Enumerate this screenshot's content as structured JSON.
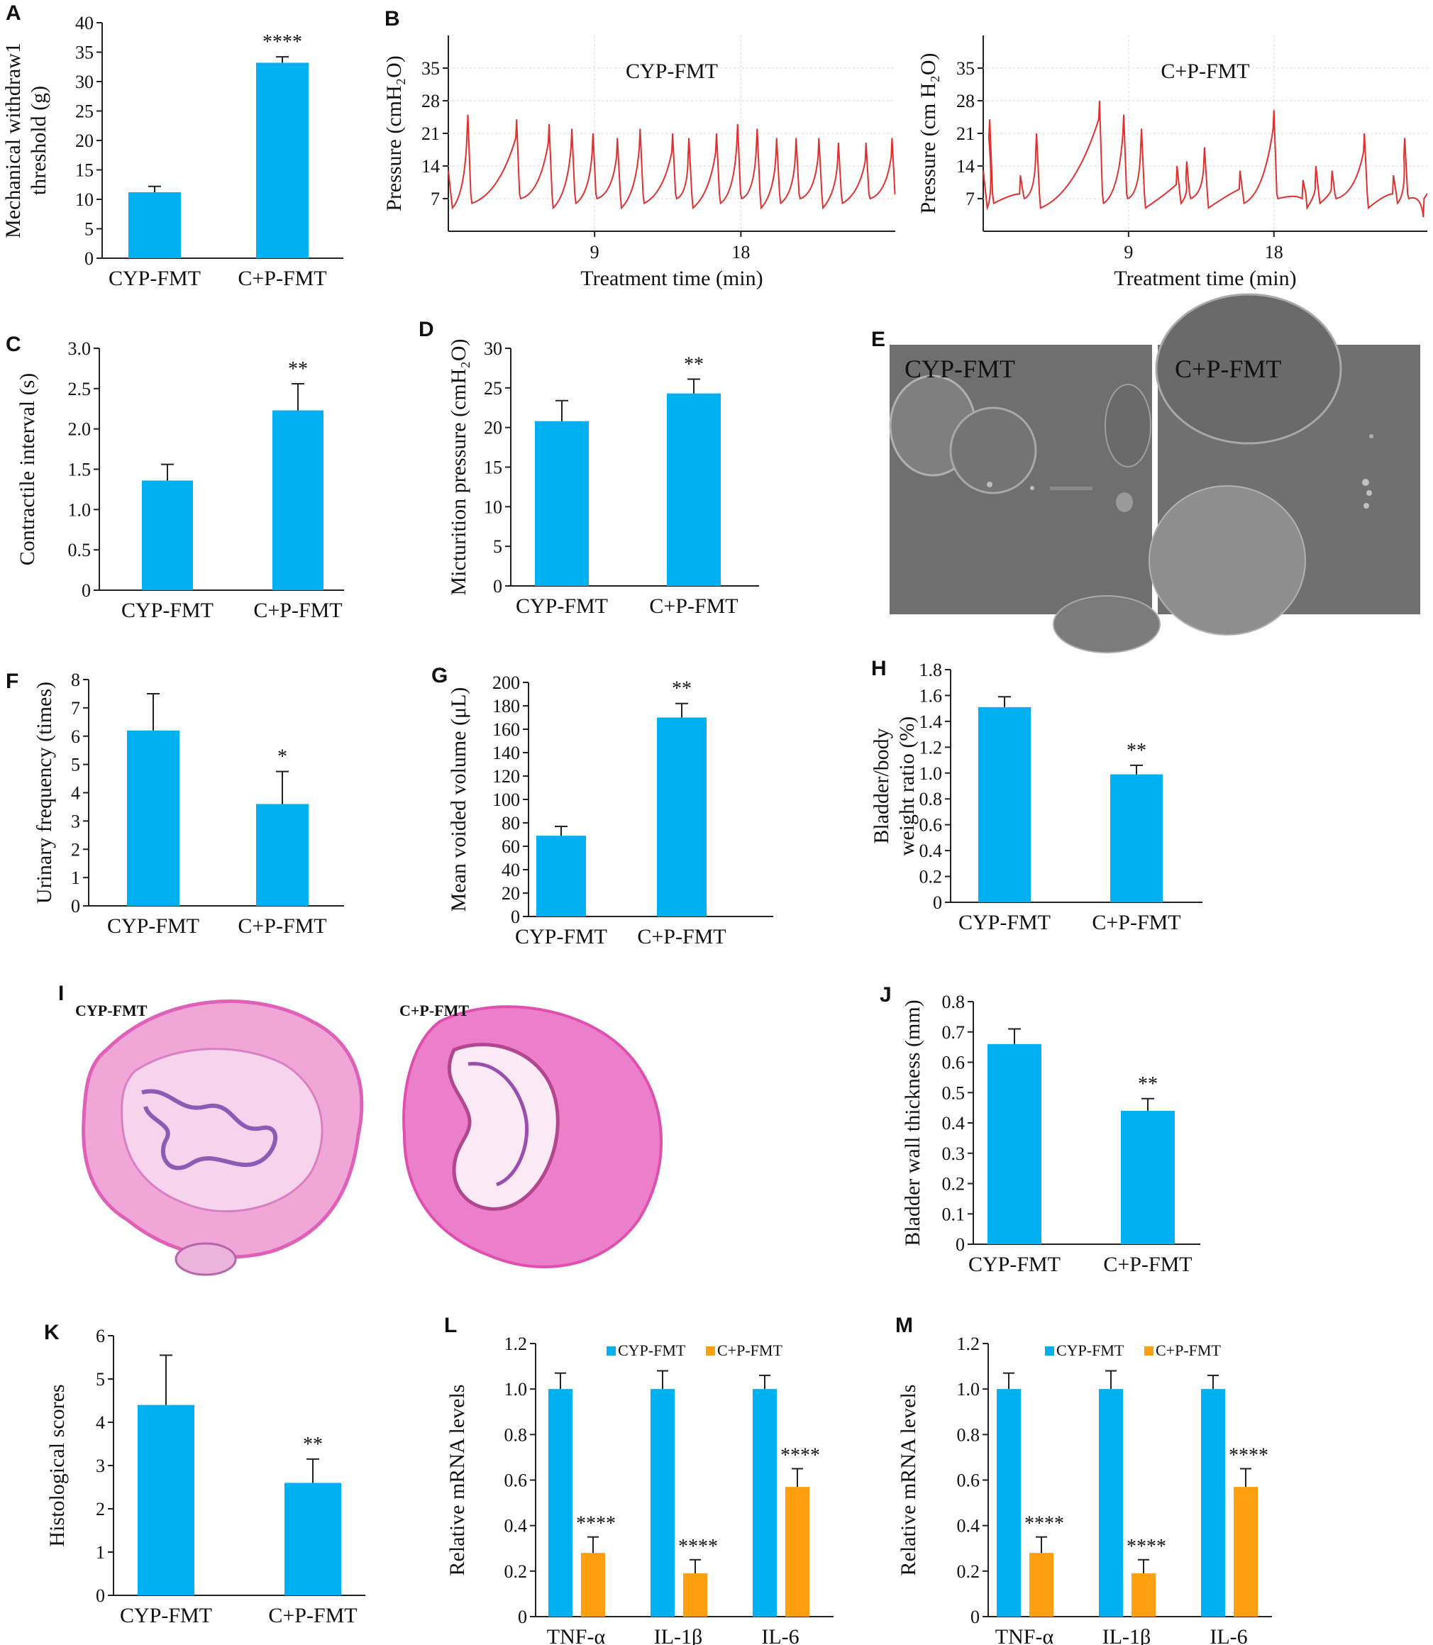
{
  "colors": {
    "cyp": "#00b0f0",
    "cp": "#ff9f0f",
    "trace": "#e03030"
  },
  "panels": {
    "A": {
      "label": "A"
    },
    "B": {
      "label": "B"
    },
    "C": {
      "label": "C"
    },
    "D": {
      "label": "D"
    },
    "E": {
      "label": "E",
      "left_text": "CYP-FMT",
      "right_text": "C+P-FMT"
    },
    "F": {
      "label": "F"
    },
    "G": {
      "label": "G"
    },
    "H": {
      "label": "H"
    },
    "I": {
      "label": "I",
      "left_text": "CYP-FMT",
      "right_text": "C+P-FMT"
    },
    "J": {
      "label": "J"
    },
    "K": {
      "label": "K"
    },
    "L": {
      "label": "L"
    },
    "M": {
      "label": "M"
    }
  },
  "chart_data": [
    {
      "id": "A",
      "type": "bar",
      "categories": [
        "CYP-FMT",
        "C+P-FMT"
      ],
      "values": [
        11.2,
        33.2
      ],
      "errors": [
        1.0,
        1.0
      ],
      "ylabel": [
        "Mechanical withdraw1",
        "threshold (g)"
      ],
      "ylim": [
        0,
        40
      ],
      "yticks": [
        "0",
        "5",
        "10",
        "15",
        "20",
        "25",
        "30",
        "35",
        "40"
      ],
      "significance": [
        "",
        "****"
      ]
    },
    {
      "id": "B1",
      "type": "line",
      "title": "CYP-FMT",
      "ylabel": "Pressure (cmH₂O)",
      "xlabel": "Treatment time (min)",
      "xlim": [
        0,
        27.5
      ],
      "ylim": [
        0,
        42
      ],
      "xticks": [
        "9",
        "18"
      ],
      "yticks": [
        "7",
        "14",
        "21",
        "28",
        "35"
      ],
      "peaks_x": [
        1.2,
        4.2,
        6.2,
        7.6,
        8.9,
        10.4,
        11.8,
        13.8,
        14.8,
        16.5,
        17.8,
        19.0,
        20.2,
        21.4,
        22.8,
        24.0,
        25.7,
        27.3
      ],
      "peaks_y": [
        25,
        24,
        23,
        22,
        21,
        20,
        22,
        21,
        20,
        21,
        23,
        22,
        20,
        20,
        20,
        19,
        19,
        20
      ]
    },
    {
      "id": "B2",
      "type": "line",
      "title": "C+P-FMT",
      "ylabel": "Pressure (cm H₂O)",
      "xlabel": "Treatment time (min)",
      "xlim": [
        0,
        27.5
      ],
      "ylim": [
        0,
        42
      ],
      "xticks": [
        "9",
        "18"
      ],
      "yticks": [
        "7",
        "14",
        "21",
        "28",
        "35"
      ],
      "peaks_x": [
        0.4,
        2.3,
        3.3,
        7.2,
        8.7,
        9.8,
        12.0,
        12.6,
        13.7,
        15.9,
        18.0,
        19.8,
        20.6,
        21.6,
        23.6,
        25.4,
        26.1,
        27.3
      ],
      "peaks_y": [
        24,
        12,
        21,
        28,
        25,
        22,
        14,
        15,
        18,
        13,
        26,
        11,
        14,
        13,
        21,
        12,
        20,
        7
      ]
    },
    {
      "id": "C",
      "type": "bar",
      "categories": [
        "CYP-FMT",
        "C+P-FMT"
      ],
      "values": [
        1.36,
        2.23
      ],
      "errors": [
        0.2,
        0.33
      ],
      "ylabel": [
        "Contractile interval (s)"
      ],
      "ylim": [
        0,
        3.0
      ],
      "yticks": [
        "0",
        "0.5",
        "1.0",
        "1.5",
        "2.0",
        "2.5",
        "3.0"
      ],
      "significance": [
        "",
        "**"
      ]
    },
    {
      "id": "D",
      "type": "bar",
      "categories": [
        "CYP-FMT",
        "C+P-FMT"
      ],
      "values": [
        20.8,
        24.3
      ],
      "errors": [
        2.6,
        1.8
      ],
      "ylabel": [
        "Micturition pressure (cmH₂O)"
      ],
      "ylim": [
        0,
        30
      ],
      "yticks": [
        "0",
        "5",
        "10",
        "15",
        "20",
        "25",
        "30"
      ],
      "significance": [
        "",
        "**"
      ]
    },
    {
      "id": "F",
      "type": "bar",
      "categories": [
        "CYP-FMT",
        "C+P-FMT"
      ],
      "values": [
        6.2,
        3.6
      ],
      "errors": [
        1.3,
        1.15
      ],
      "ylabel": [
        "Urinary frequency (times)"
      ],
      "ylim": [
        0,
        8
      ],
      "yticks": [
        "0",
        "1",
        "2",
        "3",
        "4",
        "5",
        "6",
        "7",
        "8"
      ],
      "significance": [
        "",
        "*"
      ]
    },
    {
      "id": "G",
      "type": "bar",
      "categories": [
        "CYP-FMT",
        "C+P-FMT"
      ],
      "values": [
        69,
        170
      ],
      "errors": [
        8,
        12
      ],
      "ylabel": [
        "Mean voided volume (μL)"
      ],
      "ylim": [
        0,
        200
      ],
      "yticks": [
        "0",
        "20",
        "40",
        "60",
        "80",
        "100",
        "120",
        "140",
        "160",
        "180",
        "200"
      ],
      "significance": [
        "",
        "**"
      ]
    },
    {
      "id": "H",
      "type": "bar",
      "categories": [
        "CYP-FMT",
        "C+P-FMT"
      ],
      "values": [
        1.51,
        0.99
      ],
      "errors": [
        0.08,
        0.07
      ],
      "ylabel": [
        "Bladder/body",
        "weight ratio (%)"
      ],
      "ylim": [
        0,
        1.8
      ],
      "yticks": [
        "0",
        "0.2",
        "0.4",
        "0.6",
        "0.8",
        "1.0",
        "1.2",
        "1.4",
        "1.6",
        "1.8"
      ],
      "significance": [
        "",
        "**"
      ]
    },
    {
      "id": "J",
      "type": "bar",
      "categories": [
        "CYP-FMT",
        "C+P-FMT"
      ],
      "values": [
        0.66,
        0.44
      ],
      "errors": [
        0.05,
        0.04
      ],
      "ylabel": [
        "Bladder wall thickness (mm)"
      ],
      "ylim": [
        0,
        0.8
      ],
      "yticks": [
        "0",
        "0.1",
        "0.2",
        "0.3",
        "0.4",
        "0.5",
        "0.6",
        "0.7",
        "0.8"
      ],
      "significance": [
        "",
        "**"
      ]
    },
    {
      "id": "K",
      "type": "bar",
      "categories": [
        "CYP-FMT",
        "C+P-FMT"
      ],
      "values": [
        4.4,
        2.6
      ],
      "errors": [
        1.15,
        0.55
      ],
      "ylabel": [
        "Histological scores"
      ],
      "ylim": [
        0,
        6
      ],
      "yticks": [
        "0",
        "1",
        "2",
        "3",
        "4",
        "5",
        "6"
      ],
      "significance": [
        "",
        "**"
      ]
    },
    {
      "id": "L",
      "type": "bar",
      "categories": [
        "TNF-α",
        "IL-1β",
        "IL-6"
      ],
      "ylabel": [
        "Relative mRNA levels"
      ],
      "ylim": [
        0,
        1.2
      ],
      "yticks": [
        "0",
        "0.2",
        "0.4",
        "0.6",
        "0.8",
        "1.0",
        "1.2"
      ],
      "series": [
        {
          "name": "CYP-FMT",
          "values": [
            1.0,
            1.0,
            1.0
          ],
          "errors": [
            0.07,
            0.08,
            0.06
          ],
          "significance": [
            "",
            "",
            ""
          ]
        },
        {
          "name": "C+P-FMT",
          "values": [
            0.28,
            0.19,
            0.57
          ],
          "errors": [
            0.07,
            0.06,
            0.08
          ],
          "significance": [
            "****",
            "****",
            "****"
          ]
        }
      ],
      "legend": "top-right"
    },
    {
      "id": "M",
      "type": "bar",
      "categories": [
        "TNF-α",
        "IL-1β",
        "IL-6"
      ],
      "ylabel": [
        "Relative mRNA levels"
      ],
      "ylim": [
        0,
        1.2
      ],
      "yticks": [
        "0",
        "0.2",
        "0.4",
        "0.6",
        "0.8",
        "1.0",
        "1.2"
      ],
      "series": [
        {
          "name": "CYP-FMT",
          "values": [
            1.0,
            1.0,
            1.0
          ],
          "errors": [
            0.07,
            0.08,
            0.06
          ],
          "significance": [
            "",
            "",
            ""
          ]
        },
        {
          "name": "C+P-FMT",
          "values": [
            0.28,
            0.19,
            0.57
          ],
          "errors": [
            0.07,
            0.06,
            0.08
          ],
          "significance": [
            "****",
            "****",
            "****"
          ]
        }
      ],
      "legend": "top-right"
    }
  ]
}
